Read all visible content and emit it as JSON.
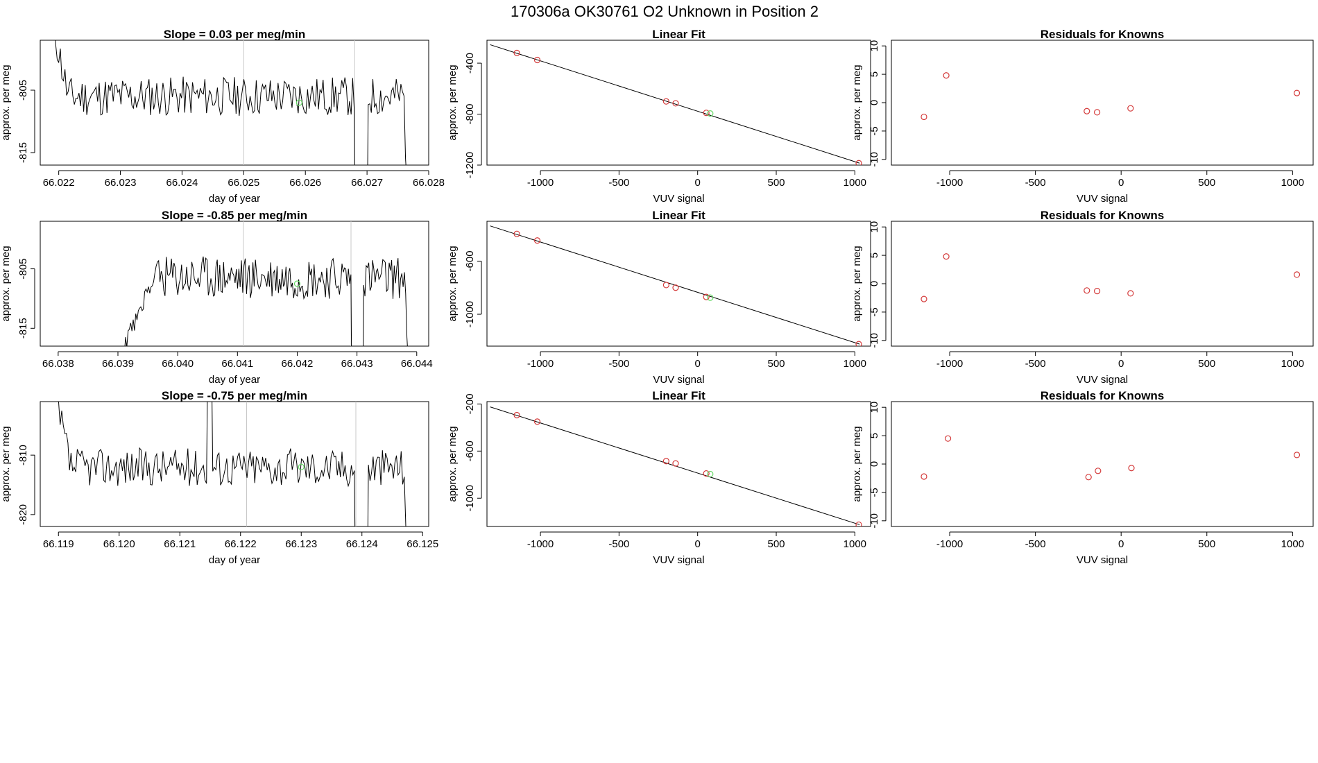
{
  "figure_title": "170306a      OK30761    O2 Unknown in Position  2",
  "colors": {
    "line": "#000000",
    "known": "#d43a3a",
    "unknown": "#66d966",
    "divider": "#c8c8c8"
  },
  "chart_data": [
    {
      "type": "line",
      "title": "Slope =  0.03  per meg/min",
      "xlabel": "day of year",
      "ylabel": "approx. per meg",
      "xlim": [
        66.0217,
        66.028
      ],
      "ylim": [
        -817,
        -797
      ],
      "xticks": [
        "66.022",
        "66.023",
        "66.024",
        "66.025",
        "66.026",
        "66.027",
        "66.028"
      ],
      "yticks": [
        "-805",
        "-815"
      ],
      "vlines": [
        66.025,
        66.0268
      ],
      "highlight": {
        "x": 66.0259,
        "y": -807
      },
      "series": {
        "start": 66.0219,
        "end": 66.0277,
        "seed": 11,
        "level": -806,
        "trend": 0,
        "noise": 1.6,
        "lowStart": 66.0268,
        "lowEnd": 66.027
      }
    },
    {
      "type": "scatter",
      "title": "Linear Fit",
      "xlabel": "VUV signal",
      "ylabel": "approx. per meg",
      "xlim": [
        -1340,
        1100
      ],
      "ylim": [
        -1200,
        -220
      ],
      "xticks": [
        "-1000",
        "-500",
        "0",
        "500",
        "1000"
      ],
      "yticks": [
        "-400",
        "-800",
        "-1200"
      ],
      "fit": {
        "x0": -1320,
        "y0": -255,
        "x1": 1030,
        "y1": -1185
      },
      "known_points": [
        [
          -1150,
          -320
        ],
        [
          -1020,
          -375
        ],
        [
          -200,
          -700
        ],
        [
          -140,
          -715
        ],
        [
          55,
          -790
        ],
        [
          1025,
          -1185
        ]
      ],
      "unknown_points": [
        [
          80,
          -795
        ]
      ]
    },
    {
      "type": "scatter",
      "title": "Residuals for Knowns",
      "xlabel": "VUV signal",
      "ylabel": "approx. per meg",
      "xlim": [
        -1340,
        1120
      ],
      "ylim": [
        -11,
        11
      ],
      "xticks": [
        "-1000",
        "-500",
        "0",
        "500",
        "1000"
      ],
      "yticks": [
        "10",
        "5",
        "0",
        "-5",
        "-10"
      ],
      "points": [
        [
          -1150,
          -2.5
        ],
        [
          -1020,
          4.8
        ],
        [
          -200,
          -1.5
        ],
        [
          -140,
          -1.7
        ],
        [
          55,
          -1
        ],
        [
          1025,
          1.7
        ]
      ]
    },
    {
      "type": "line",
      "title": "Slope =  -0.85  per meg/min",
      "xlabel": "day of year",
      "ylabel": "approx. per meg",
      "xlim": [
        66.0377,
        66.0442
      ],
      "ylim": [
        -818,
        -797
      ],
      "xticks": [
        "66.038",
        "66.039",
        "66.040",
        "66.041",
        "66.042",
        "66.043",
        "66.044"
      ],
      "yticks": [
        "-805",
        "-815"
      ],
      "vlines": [
        66.0411,
        66.0429
      ],
      "highlight": {
        "x": 66.042,
        "y": -807.5
      },
      "series": {
        "start": 66.039,
        "end": 66.0439,
        "seed": 23,
        "level": -806.5,
        "trend": 0,
        "noise": 1.8,
        "lowStart": 66.0429,
        "lowEnd": 66.0431,
        "rampEnd": 66.0396
      }
    },
    {
      "type": "scatter",
      "title": "Linear Fit",
      "xlabel": "VUV signal",
      "ylabel": "approx. per meg",
      "xlim": [
        -1340,
        1100
      ],
      "ylim": [
        -1240,
        -300
      ],
      "xticks": [
        "-1000",
        "-500",
        "0",
        "500",
        "1000"
      ],
      "yticks": [
        "-600",
        "-1000"
      ],
      "fit": {
        "x0": -1320,
        "y0": -335,
        "x1": 1030,
        "y1": -1225
      },
      "known_points": [
        [
          -1150,
          -395
        ],
        [
          -1020,
          -445
        ],
        [
          -200,
          -780
        ],
        [
          -140,
          -800
        ],
        [
          55,
          -870
        ],
        [
          1025,
          -1225
        ]
      ],
      "unknown_points": [
        [
          80,
          -875
        ]
      ]
    },
    {
      "type": "scatter",
      "title": "Residuals for Knowns",
      "xlabel": "VUV signal",
      "ylabel": "approx. per meg",
      "xlim": [
        -1340,
        1120
      ],
      "ylim": [
        -11,
        11
      ],
      "xticks": [
        "-1000",
        "-500",
        "0",
        "500",
        "1000"
      ],
      "yticks": [
        "10",
        "5",
        "0",
        "-5",
        "-10"
      ],
      "points": [
        [
          -1150,
          -2.7
        ],
        [
          -1020,
          4.8
        ],
        [
          -200,
          -1.2
        ],
        [
          -140,
          -1.3
        ],
        [
          55,
          -1.7
        ],
        [
          1025,
          1.6
        ]
      ]
    },
    {
      "type": "line",
      "title": "Slope =  -0.75  per meg/min",
      "xlabel": "day of year",
      "ylabel": "approx. per meg",
      "xlim": [
        66.1187,
        66.1251
      ],
      "ylim": [
        -822,
        -801
      ],
      "xticks": [
        "66.119",
        "66.120",
        "66.121",
        "66.122",
        "66.123",
        "66.124",
        "66.125"
      ],
      "yticks": [
        "-810",
        "-820"
      ],
      "vlines": [
        66.1221,
        66.1239
      ],
      "highlight": {
        "x": 66.123,
        "y": -812
      },
      "series": {
        "start": 66.1189,
        "end": 66.1248,
        "seed": 37,
        "level": -812,
        "trend": 0,
        "noise": 1.6,
        "lowStart": 66.1239,
        "lowEnd": 66.1241,
        "spike": 66.1215,
        "startHigh": true
      }
    },
    {
      "type": "scatter",
      "title": "Linear Fit",
      "xlabel": "VUV signal",
      "ylabel": "approx. per meg",
      "xlim": [
        -1340,
        1100
      ],
      "ylim": [
        -1240,
        -180
      ],
      "xticks": [
        "-1000",
        "-500",
        "0",
        "500",
        "1000"
      ],
      "yticks": [
        "-200",
        "-600",
        "-1000"
      ],
      "fit": {
        "x0": -1320,
        "y0": -225,
        "x1": 1030,
        "y1": -1225
      },
      "known_points": [
        [
          -1150,
          -295
        ],
        [
          -1020,
          -350
        ],
        [
          -200,
          -685
        ],
        [
          -140,
          -705
        ],
        [
          55,
          -790
        ],
        [
          1025,
          -1225
        ]
      ],
      "unknown_points": [
        [
          80,
          -795
        ]
      ]
    },
    {
      "type": "scatter",
      "title": "Residuals for Knowns",
      "xlabel": "VUV signal",
      "ylabel": "approx. per meg",
      "xlim": [
        -1340,
        1120
      ],
      "ylim": [
        -11,
        11
      ],
      "xticks": [
        "-1000",
        "-500",
        "0",
        "500",
        "1000"
      ],
      "yticks": [
        "10",
        "5",
        "0",
        "-5",
        "-10"
      ],
      "points": [
        [
          -1150,
          -2.2
        ],
        [
          -1010,
          4.5
        ],
        [
          -190,
          -2.3
        ],
        [
          -135,
          -1.2
        ],
        [
          60,
          -0.7
        ],
        [
          1025,
          1.6
        ]
      ]
    }
  ]
}
